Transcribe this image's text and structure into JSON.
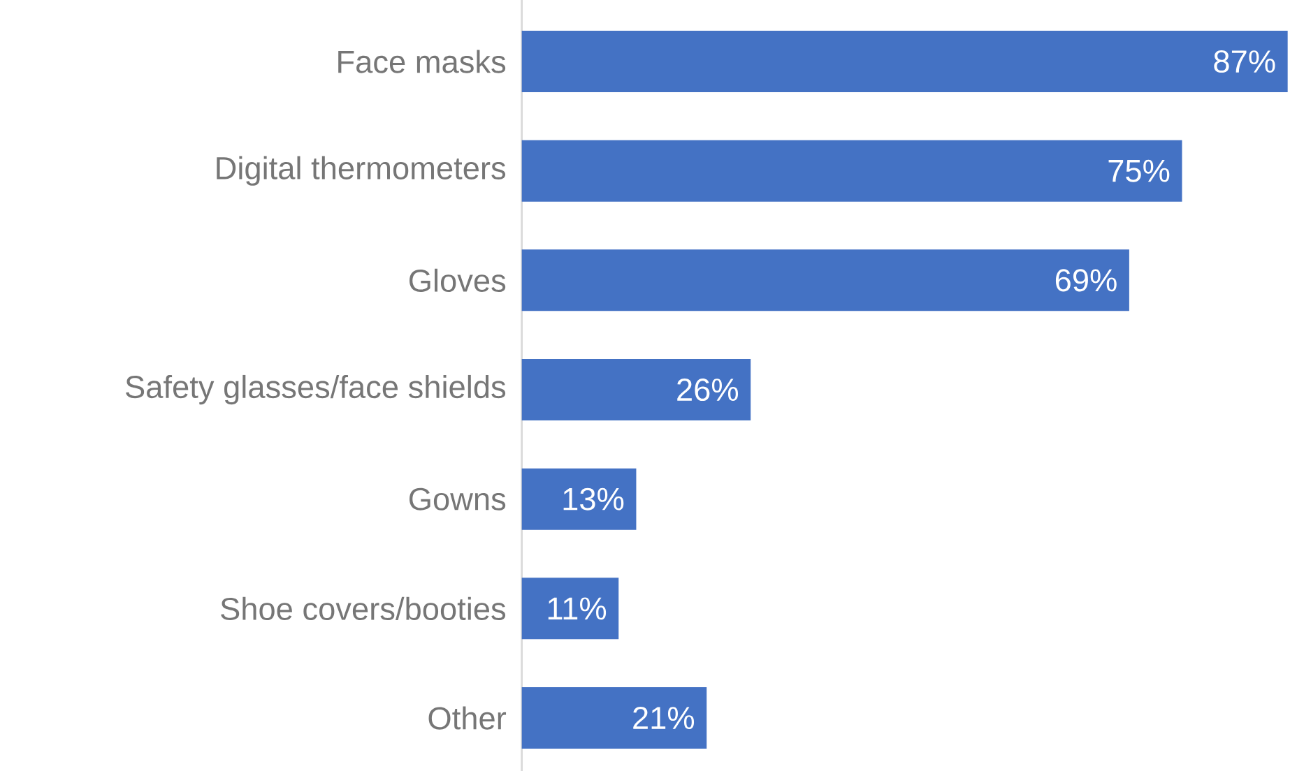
{
  "chart_data": {
    "type": "bar",
    "orientation": "horizontal",
    "categories": [
      "Face masks",
      "Digital thermometers",
      "Gloves",
      "Safety glasses/face shields",
      "Gowns",
      "Shoe covers/booties",
      "Other"
    ],
    "values": [
      87,
      75,
      69,
      26,
      13,
      11,
      21
    ],
    "value_labels": [
      "87%",
      "75%",
      "69%",
      "26%",
      "13%",
      "11%",
      "21%"
    ],
    "color": "#4472c4"
  }
}
